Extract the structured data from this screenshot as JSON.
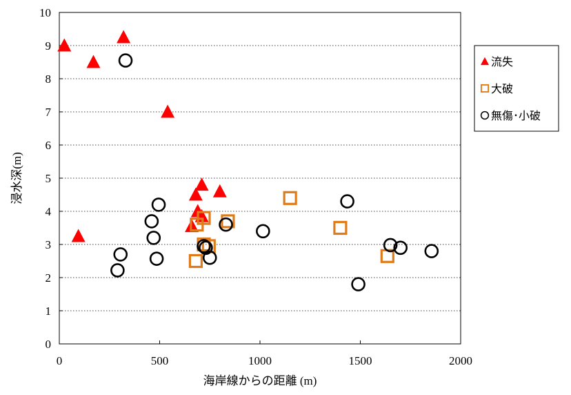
{
  "chart_data": {
    "type": "scatter",
    "xlabel": "海岸線からの距離 (m)",
    "ylabel": "浸水深(m)",
    "xlim": [
      0,
      2000
    ],
    "ylim": [
      0,
      10
    ],
    "x_ticks": [
      "0",
      "500",
      "1000",
      "1500",
      "2000"
    ],
    "y_ticks": [
      "0",
      "1",
      "2",
      "3",
      "4",
      "5",
      "6",
      "7",
      "8",
      "9",
      "10"
    ],
    "grid": "horizontal-dotted",
    "legend_position": "right",
    "series": [
      {
        "name": "流失",
        "marker": "filled-triangle",
        "color": "#ff0000",
        "points": [
          [
            25,
            9.0
          ],
          [
            170,
            8.5
          ],
          [
            320,
            9.25
          ],
          [
            540,
            7.0
          ],
          [
            95,
            3.25
          ],
          [
            680,
            4.5
          ],
          [
            710,
            4.8
          ],
          [
            800,
            4.6
          ],
          [
            690,
            4.0
          ],
          [
            660,
            3.55
          ],
          [
            710,
            3.85
          ]
        ]
      },
      {
        "name": "大破",
        "marker": "open-square",
        "color": "#e07b1a",
        "points": [
          [
            685,
            3.6
          ],
          [
            720,
            3.8
          ],
          [
            840,
            3.7
          ],
          [
            1150,
            4.4
          ],
          [
            1400,
            3.5
          ],
          [
            720,
            3.0
          ],
          [
            745,
            2.95
          ],
          [
            680,
            2.5
          ],
          [
            1635,
            2.65
          ]
        ]
      },
      {
        "name": "無傷･小破",
        "marker": "open-circle",
        "color": "#000000",
        "points": [
          [
            330,
            8.55
          ],
          [
            495,
            4.2
          ],
          [
            460,
            3.7
          ],
          [
            470,
            3.2
          ],
          [
            305,
            2.7
          ],
          [
            290,
            2.22
          ],
          [
            485,
            2.57
          ],
          [
            720,
            2.95
          ],
          [
            730,
            2.9
          ],
          [
            750,
            2.6
          ],
          [
            830,
            3.6
          ],
          [
            1015,
            3.4
          ],
          [
            1435,
            4.3
          ],
          [
            1490,
            1.8
          ],
          [
            1650,
            2.98
          ],
          [
            1700,
            2.9
          ],
          [
            1855,
            2.8
          ]
        ]
      }
    ]
  }
}
